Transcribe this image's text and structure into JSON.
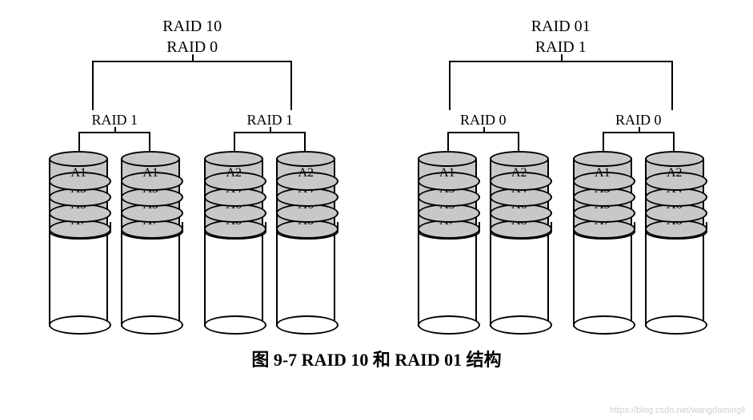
{
  "caption": "图 9-7   RAID 10 和 RAID 01 结构",
  "watermark": "https://blog.csdn.net/wangdamingll",
  "colors": {
    "slice_fill": "#c8c8c8",
    "body_fill": "#ffffff",
    "line": "#000000",
    "background": "#ffffff"
  },
  "typography": {
    "title_fontsize": 20,
    "label_fontsize": 18,
    "slice_fontsize": 16,
    "caption_fontsize": 22,
    "font_family": "Times New Roman"
  },
  "layout": {
    "disk_width": 74,
    "disk_ellipse_height": 20,
    "slice_height": 30,
    "body_height": 130,
    "disk_gap": 16,
    "subgroup_gap": 30,
    "top_bracket_width_raid10": 250,
    "top_bracket_width_raid01": 280,
    "sub_bracket_width": 90
  },
  "sets": [
    {
      "title_line1": "RAID 10",
      "title_line2": "RAID 0",
      "subgroups": [
        {
          "label": "RAID 1",
          "disks": [
            {
              "slices": [
                "A1",
                "A3",
                "A5",
                "A7"
              ]
            },
            {
              "slices": [
                "A1",
                "A3",
                "A5",
                "A7"
              ]
            }
          ]
        },
        {
          "label": "RAID 1",
          "disks": [
            {
              "slices": [
                "A2",
                "A4",
                "A6",
                "A8"
              ]
            },
            {
              "slices": [
                "A2",
                "A4",
                "A6",
                "A8"
              ]
            }
          ]
        }
      ]
    },
    {
      "title_line1": "RAID 01",
      "title_line2": "RAID 1",
      "subgroups": [
        {
          "label": "RAID 0",
          "disks": [
            {
              "slices": [
                "A1",
                "A3",
                "A5",
                "A7"
              ]
            },
            {
              "slices": [
                "A2",
                "A4",
                "A6",
                "A8"
              ]
            }
          ]
        },
        {
          "label": "RAID 0",
          "disks": [
            {
              "slices": [
                "A1",
                "A3",
                "A5",
                "A7"
              ]
            },
            {
              "slices": [
                "A2",
                "A4",
                "A6",
                "A8"
              ]
            }
          ]
        }
      ]
    }
  ]
}
